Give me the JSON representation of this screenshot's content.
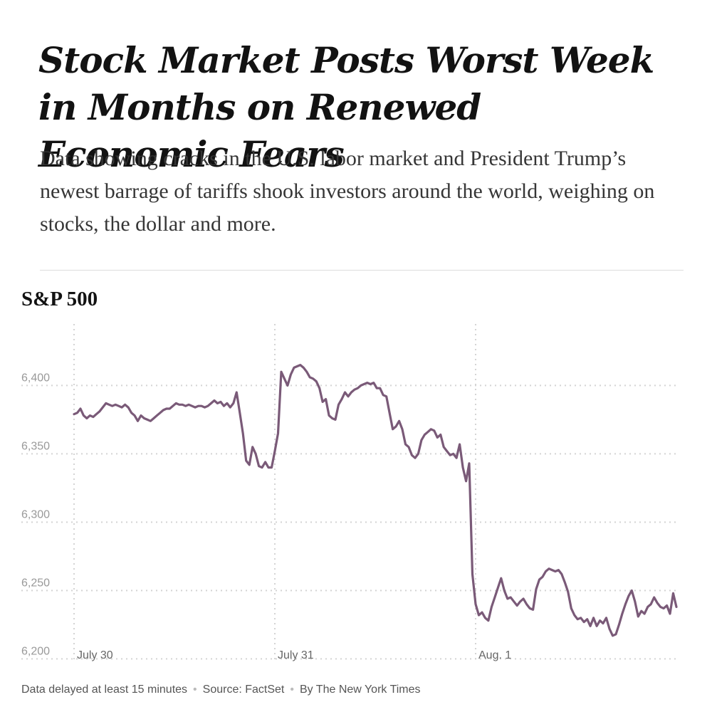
{
  "headline": "Stock Market Posts Worst Week in Months on Renewed Economic Fears",
  "dek": "Data showing cracks in the U.S. labor market and President Trump’s newest barrage of tariffs shook investors around the world, weighing on stocks, the dollar and more.",
  "footer": {
    "note": "Data delayed at least 15 minutes",
    "source": "Source: FactSet",
    "byline": "By The New York Times"
  },
  "colors": {
    "line": "#7a5a78",
    "grid": "#d4d4d4",
    "tick_text": "#999999"
  },
  "chart_data": {
    "type": "line",
    "title": "S&P 500",
    "xlabel": "",
    "ylabel": "",
    "ylim": [
      6195,
      6445
    ],
    "yticks": [
      6200,
      6250,
      6300,
      6350,
      6400
    ],
    "ytick_labels": [
      "6,200",
      "6,250",
      "6,300",
      "6,350",
      "6,400"
    ],
    "xticks": [
      0,
      1,
      2
    ],
    "xtick_labels": [
      "July 30",
      "July 31",
      "Aug. 1"
    ],
    "xlim": [
      0,
      3
    ],
    "grid": true,
    "series": [
      {
        "values": [
          6379,
          6380,
          6383,
          6378,
          6376,
          6378,
          6377,
          6379,
          6381,
          6384,
          6387,
          6386,
          6385,
          6386,
          6385,
          6384,
          6386,
          6384,
          6380,
          6378,
          6374,
          6378,
          6376,
          6375,
          6374,
          6376,
          6378,
          6380,
          6382,
          6383,
          6383,
          6385,
          6387,
          6386,
          6386,
          6385,
          6386,
          6385,
          6384,
          6385,
          6385,
          6384,
          6385,
          6387,
          6389,
          6387,
          6388,
          6385,
          6387,
          6384,
          6387,
          6395,
          6380,
          6365,
          6345,
          6342,
          6355,
          6350,
          6341,
          6340,
          6344,
          6340,
          6340,
          6352,
          6365,
          6410,
          6405,
          6400,
          6408,
          6413,
          6414,
          6415,
          6413,
          6410,
          6406,
          6405,
          6403,
          6398,
          6388,
          6390,
          6378,
          6376,
          6375,
          6386,
          6390,
          6395,
          6392,
          6395,
          6397,
          6398,
          6400,
          6401,
          6402,
          6401,
          6402,
          6398,
          6398,
          6393,
          6392,
          6380,
          6368,
          6370,
          6374,
          6368,
          6357,
          6355,
          6349,
          6347,
          6350,
          6360,
          6364,
          6366,
          6368,
          6367,
          6362,
          6364,
          6355,
          6352,
          6349,
          6350,
          6347,
          6357,
          6340,
          6330,
          6343,
          6262,
          6240,
          6232,
          6234,
          6230,
          6228,
          6238,
          6245,
          6252,
          6259,
          6250,
          6244,
          6245,
          6242,
          6239,
          6242,
          6244,
          6240,
          6237,
          6236,
          6251,
          6258,
          6260,
          6264,
          6266,
          6265,
          6264,
          6265,
          6262,
          6256,
          6249,
          6237,
          6232,
          6229,
          6230,
          6227,
          6229,
          6224,
          6230,
          6224,
          6228,
          6226,
          6230,
          6222,
          6217,
          6218,
          6225,
          6233,
          6240,
          6246,
          6250,
          6242,
          6231,
          6235,
          6233,
          6238,
          6240,
          6245,
          6241,
          6238,
          6237,
          6239,
          6233,
          6248,
          6238
        ]
      }
    ]
  }
}
